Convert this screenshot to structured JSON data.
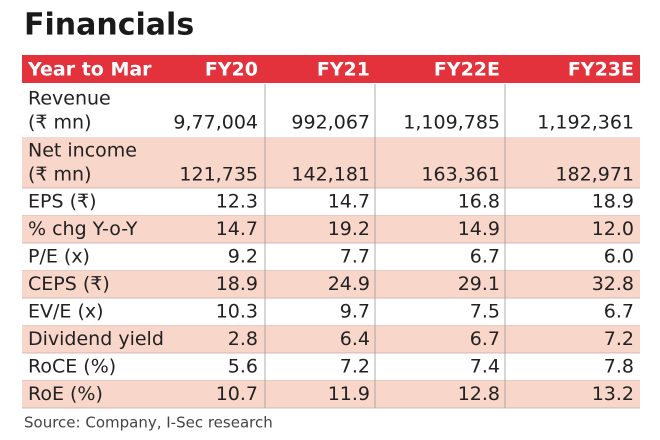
{
  "title": "Financials",
  "table": {
    "header": [
      "Year to Mar",
      "FY20",
      "FY21",
      "FY22E",
      "FY23E"
    ],
    "rows": [
      {
        "label": [
          "Revenue",
          "(₹ mn)"
        ],
        "values": [
          "9,77,004",
          "992,067",
          "1,109,785",
          "1,192,361"
        ]
      },
      {
        "label": [
          "Net income",
          "(₹ mn)"
        ],
        "values": [
          "121,735",
          "142,181",
          "163,361",
          "182,971"
        ]
      },
      {
        "label": [
          "EPS (₹)"
        ],
        "values": [
          "12.3",
          "14.7",
          "16.8",
          "18.9"
        ]
      },
      {
        "label": [
          "% chg Y-o-Y"
        ],
        "values": [
          "14.7",
          "19.2",
          "14.9",
          "12.0"
        ]
      },
      {
        "label": [
          "P/E (x)"
        ],
        "values": [
          "9.2",
          "7.7",
          "6.7",
          "6.0"
        ]
      },
      {
        "label": [
          "CEPS (₹)"
        ],
        "values": [
          "18.9",
          "24.9",
          "29.1",
          "32.8"
        ]
      },
      {
        "label": [
          "EV/E (x)"
        ],
        "values": [
          "10.3",
          "9.7",
          "7.5",
          "6.7"
        ]
      },
      {
        "label": [
          "Dividend yield"
        ],
        "values": [
          "2.8",
          "6.4",
          "6.7",
          "7.2"
        ]
      },
      {
        "label": [
          "RoCE (%)"
        ],
        "values": [
          "5.6",
          "7.2",
          "7.4",
          "7.8"
        ]
      },
      {
        "label": [
          "RoE (%)"
        ],
        "values": [
          "10.7",
          "11.9",
          "12.8",
          "13.2"
        ]
      }
    ]
  },
  "source": "Source: Company, I-Sec research"
}
